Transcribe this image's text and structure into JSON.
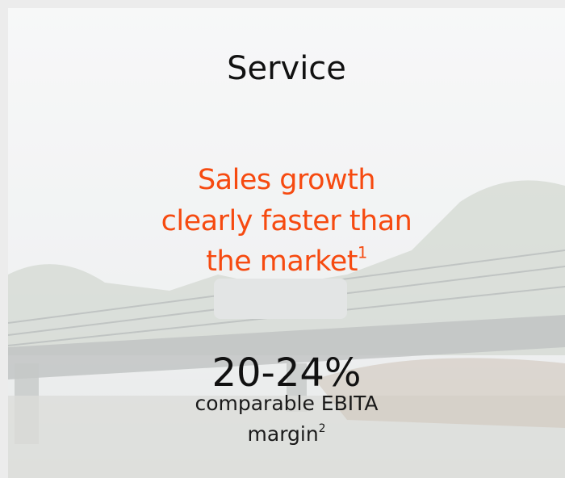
{
  "title": "Service",
  "headline": {
    "lines": [
      "Sales growth",
      "clearly faster than",
      "the market"
    ],
    "footnote": "1"
  },
  "metric": "20-24%",
  "description": {
    "lines": [
      "comparable EBITA",
      "margin"
    ],
    "footnote": "2"
  }
}
